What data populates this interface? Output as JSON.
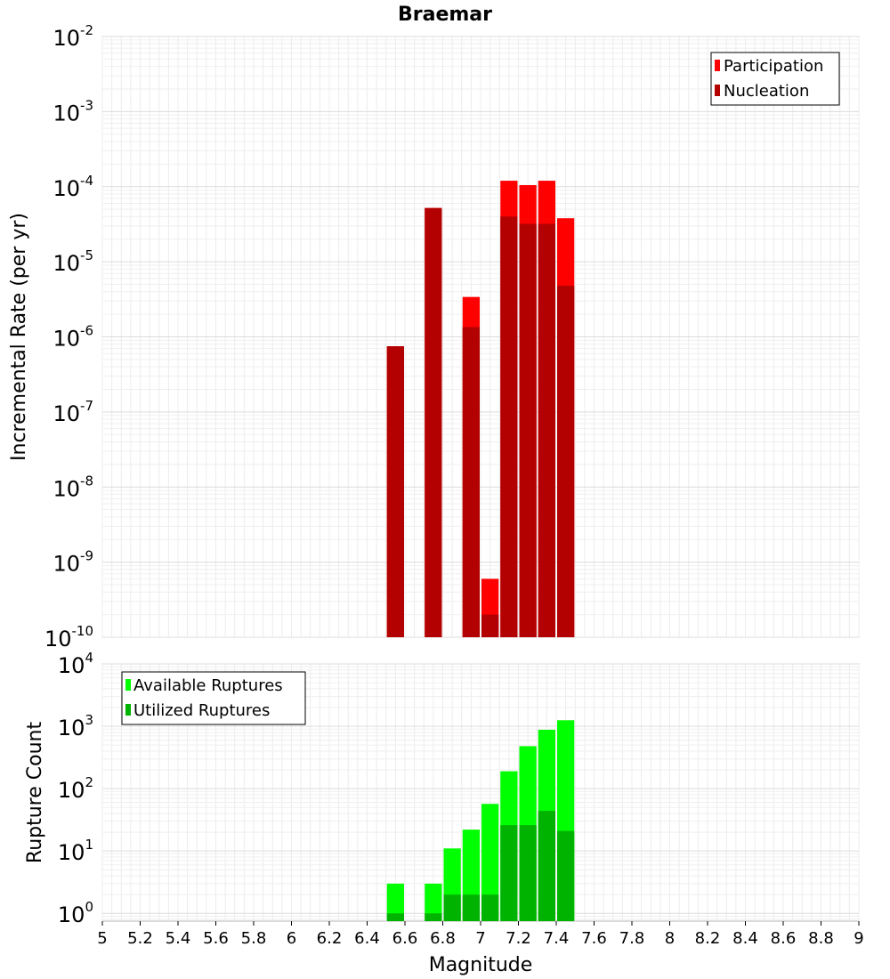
{
  "chart_data": [
    {
      "type": "bar",
      "title": "Braemar",
      "ylabel": "Incremental Rate (per yr)",
      "xlabel": "",
      "y_scale": "log",
      "ylim": [
        1e-10,
        0.01
      ],
      "xlim": [
        5,
        9
      ],
      "bar_width": 0.1,
      "y_ticks": [
        {
          "base": "10",
          "exp": "-10"
        },
        {
          "base": "10",
          "exp": "-9"
        },
        {
          "base": "10",
          "exp": "-8"
        },
        {
          "base": "10",
          "exp": "-7"
        },
        {
          "base": "10",
          "exp": "-6"
        },
        {
          "base": "10",
          "exp": "-5"
        },
        {
          "base": "10",
          "exp": "-4"
        },
        {
          "base": "10",
          "exp": "-3"
        },
        {
          "base": "10",
          "exp": "-2"
        }
      ],
      "legend_position": "top-right",
      "series": [
        {
          "name": "Participation",
          "color": "#ff0000",
          "x": [
            6.55,
            6.75,
            6.95,
            7.05,
            7.15,
            7.25,
            7.35,
            7.45
          ],
          "values": [
            7.5e-07,
            5.2e-05,
            3.4e-06,
            6e-10,
            0.00012,
            0.000105,
            0.00012,
            3.8e-05
          ]
        },
        {
          "name": "Nucleation",
          "color": "#b30000",
          "x": [
            6.55,
            6.75,
            6.95,
            7.05,
            7.15,
            7.25,
            7.35,
            7.45
          ],
          "values": [
            7.5e-07,
            5.2e-05,
            1.35e-06,
            2e-10,
            4e-05,
            3.2e-05,
            3.2e-05,
            4.8e-06
          ]
        }
      ]
    },
    {
      "type": "bar",
      "title": "",
      "ylabel": "Rupture Count",
      "xlabel": "Magnitude",
      "y_scale": "log",
      "ylim": [
        0.75,
        10000
      ],
      "xlim": [
        5,
        9
      ],
      "bar_width": 0.1,
      "x_ticks": [
        "5",
        "5.2",
        "5.4",
        "5.6",
        "5.8",
        "6",
        "6.2",
        "6.4",
        "6.6",
        "6.8",
        "7",
        "7.2",
        "7.4",
        "7.6",
        "7.8",
        "8",
        "8.2",
        "8.4",
        "8.6",
        "8.8",
        "9"
      ],
      "y_ticks": [
        {
          "base": "10",
          "exp": "0"
        },
        {
          "base": "10",
          "exp": "1"
        },
        {
          "base": "10",
          "exp": "2"
        },
        {
          "base": "10",
          "exp": "3"
        },
        {
          "base": "10",
          "exp": "4"
        }
      ],
      "legend_position": "top-left",
      "series": [
        {
          "name": "Available Ruptures",
          "color": "#00ff00",
          "x": [
            6.55,
            6.75,
            6.85,
            6.95,
            7.05,
            7.15,
            7.25,
            7.35,
            7.45
          ],
          "values": [
            3,
            3,
            11,
            22,
            57,
            190,
            480,
            880,
            1250
          ]
        },
        {
          "name": "Utilized Ruptures",
          "color": "#00b300",
          "x": [
            6.55,
            6.75,
            6.85,
            6.95,
            7.05,
            7.15,
            7.25,
            7.35,
            7.45
          ],
          "values": [
            1,
            1,
            2,
            2,
            2,
            26,
            26,
            44,
            21
          ]
        }
      ]
    }
  ]
}
